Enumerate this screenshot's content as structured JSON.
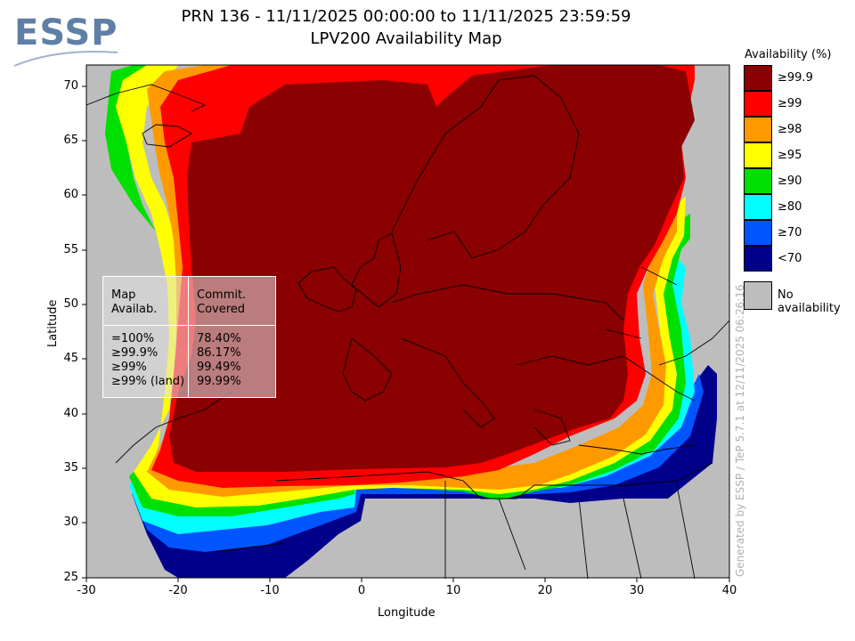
{
  "header": {
    "title_line1": "PRN 136 - 11/11/2025 00:00:00 to 11/11/2025 23:59:59",
    "title_line2": "LPV200 Availability Map"
  },
  "logo": {
    "text": "ESSP"
  },
  "axes": {
    "xlabel": "Longitude",
    "ylabel": "Latitude",
    "xticks": [
      "-30",
      "-20",
      "-10",
      "0",
      "10",
      "20",
      "30",
      "40"
    ],
    "yticks": [
      "70",
      "65",
      "60",
      "55",
      "50",
      "45",
      "40",
      "35",
      "30",
      "25"
    ],
    "xlim": [
      -30,
      40
    ],
    "ylim": [
      25,
      72.5
    ]
  },
  "legend": {
    "title": "Availability (%)",
    "items": [
      {
        "label": "≥99.9",
        "color": "#8b0000"
      },
      {
        "label": "≥99",
        "color": "#ff0000"
      },
      {
        "label": "≥98",
        "color": "#ff9900"
      },
      {
        "label": "≥95",
        "color": "#ffff00"
      },
      {
        "label": "≥90",
        "color": "#00e000"
      },
      {
        "label": "≥80",
        "color": "#00ffff"
      },
      {
        "label": "≥70",
        "color": "#0055ff"
      },
      {
        "label": "<70",
        "color": "#00008b"
      }
    ],
    "no_availability_label": "No availability",
    "no_availability_color": "#bdbdbd"
  },
  "stats": {
    "col1_header": "Map\nAvailab.",
    "col2_header": "Commit.\nCovered",
    "col1_h1": "Map",
    "col1_h2": "Availab.",
    "col2_h1": "Commit.",
    "col2_h2": "Covered",
    "rows": [
      {
        "label": "=100%",
        "value": "78.40%"
      },
      {
        "label": "≥99.9%",
        "value": "86.17%"
      },
      {
        "label": "≥99%",
        "value": "99.49%"
      },
      {
        "label": "≥99% (land)",
        "value": "99.99%"
      }
    ]
  },
  "credit": "Generated by ESSP / TeP 5.7.1 at 12/11/2025 06:26:16"
}
